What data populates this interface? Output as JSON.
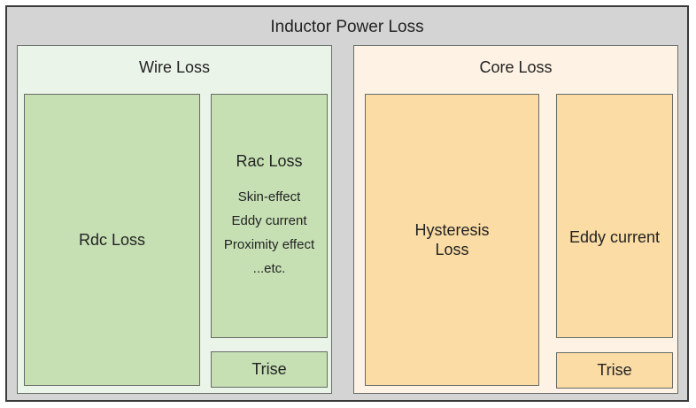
{
  "diagram": {
    "title": "Inductor Power Loss",
    "colors": {
      "background": "#d4d4d4",
      "border_dark": "#3a3a3a",
      "border_box": "#676c67",
      "text": "#232323",
      "wire_panel": "#ebf4e8",
      "wire_box": "#c6e0b4",
      "core_panel": "#fdf2e3",
      "core_box": "#fbdca4"
    },
    "wire": {
      "label": "Wire Loss",
      "rdc": {
        "label": "Rdc Loss"
      },
      "rac": {
        "label": "Rac Loss",
        "details": [
          "Skin-effect",
          "Eddy current",
          "Proximity effect",
          "...etc."
        ]
      },
      "trise": {
        "label": "Trise"
      }
    },
    "core": {
      "label": "Core Loss",
      "hysteresis": {
        "label": "Hysteresis Loss"
      },
      "eddy": {
        "label": "Eddy current"
      },
      "trise": {
        "label": "Trise"
      }
    }
  }
}
